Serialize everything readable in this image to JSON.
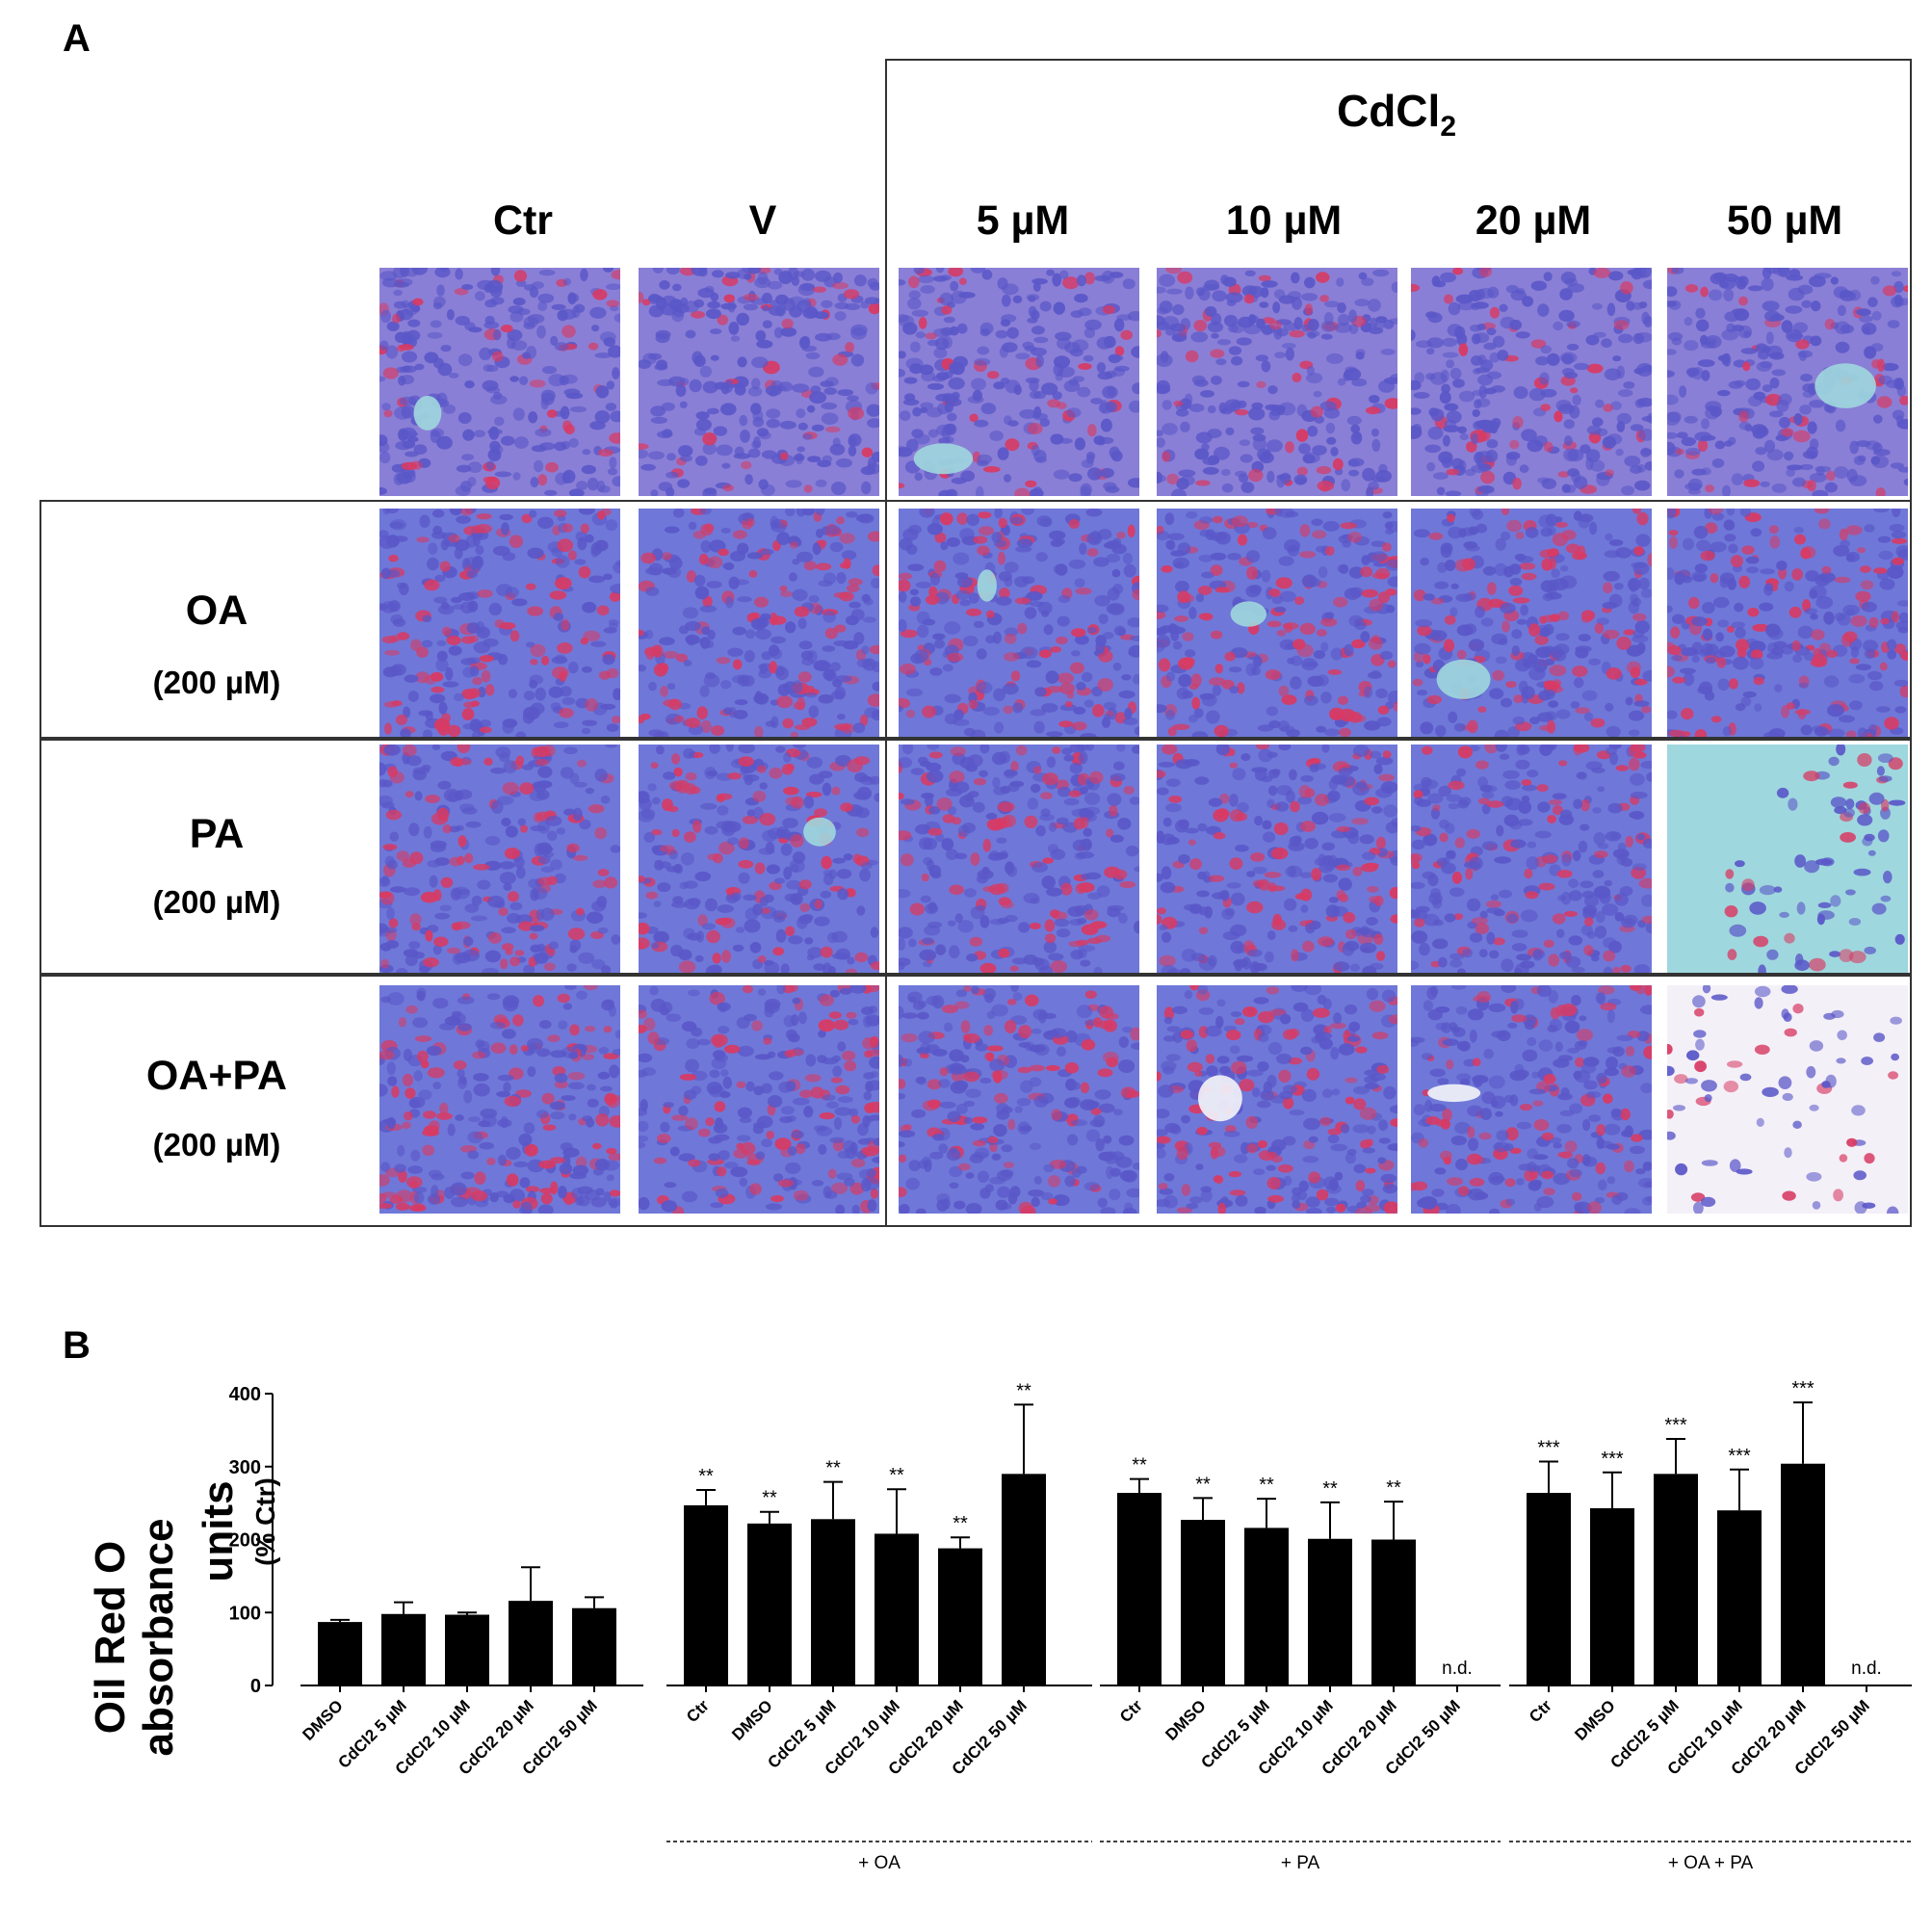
{
  "panel_a": {
    "letter": "A",
    "group_label_main": "CdCl",
    "group_label_sub": "2",
    "columns": [
      "Ctr",
      "V",
      "5 µM",
      "10 µM",
      "20 µM",
      "50 µM"
    ],
    "rows": [
      {
        "name": "",
        "conc": ""
      },
      {
        "name": "OA",
        "conc": "(200 µM)"
      },
      {
        "name": "PA",
        "conc": "(200 µM)"
      },
      {
        "name": "OA+PA",
        "conc": "(200 µM)"
      }
    ],
    "micrograph_colors": {
      "cell_blue": "#5a57c8",
      "stain_red": "#d83a63",
      "background_cyan": "#9fd7de",
      "pale": "#f4f0f8"
    }
  },
  "panel_b": {
    "letter": "B",
    "y_title_line1": "Oil Red O",
    "y_title_line2": "absorbance",
    "y_title_line3": "units",
    "y_unit": "(% Ctr)"
  },
  "chart_data": {
    "type": "bar",
    "ylabel": "Oil Red O absorbance units (% Ctr)",
    "ylim": [
      0,
      400
    ],
    "yticks": [
      0,
      100,
      200,
      300,
      400
    ],
    "groups": [
      {
        "label": "",
        "categories": [
          "DMSO",
          "CdCl2 5 µM",
          "CdCl2 10 µM",
          "CdCl2 20 µM",
          "CdCl2 50 µM"
        ],
        "values": [
          87,
          98,
          97,
          116,
          106
        ],
        "errors": [
          3,
          16,
          3,
          46,
          15
        ],
        "significance": [
          "",
          "",
          "",
          "",
          ""
        ]
      },
      {
        "label": "+ OA",
        "categories": [
          "Ctr",
          "DMSO",
          "CdCl2 5 µM",
          "CdCl2 10 µM",
          "CdCl2 20 µM",
          "CdCl2 50 µM"
        ],
        "values": [
          247,
          222,
          228,
          208,
          188,
          290
        ],
        "errors": [
          21,
          16,
          51,
          61,
          15,
          95
        ],
        "significance": [
          "**",
          "**",
          "**",
          "**",
          "**",
          "**"
        ]
      },
      {
        "label": "+ PA",
        "categories": [
          "Ctr",
          "DMSO",
          "CdCl2 5 µM",
          "CdCl2 10 µM",
          "CdCl2 20 µM",
          "CdCl2 50 µM"
        ],
        "values": [
          264,
          227,
          216,
          201,
          200,
          null
        ],
        "errors": [
          19,
          30,
          40,
          50,
          52,
          null
        ],
        "significance": [
          "**",
          "**",
          "**",
          "**",
          "**",
          "n.d."
        ]
      },
      {
        "label": "+ OA + PA",
        "categories": [
          "Ctr",
          "DMSO",
          "CdCl2 5 µM",
          "CdCl2 10 µM",
          "CdCl2 20 µM",
          "CdCl2 50 µM"
        ],
        "values": [
          264,
          243,
          290,
          240,
          304,
          null
        ],
        "errors": [
          43,
          49,
          48,
          56,
          84,
          null
        ],
        "significance": [
          "***",
          "***",
          "***",
          "***",
          "***",
          "n.d."
        ]
      }
    ]
  }
}
